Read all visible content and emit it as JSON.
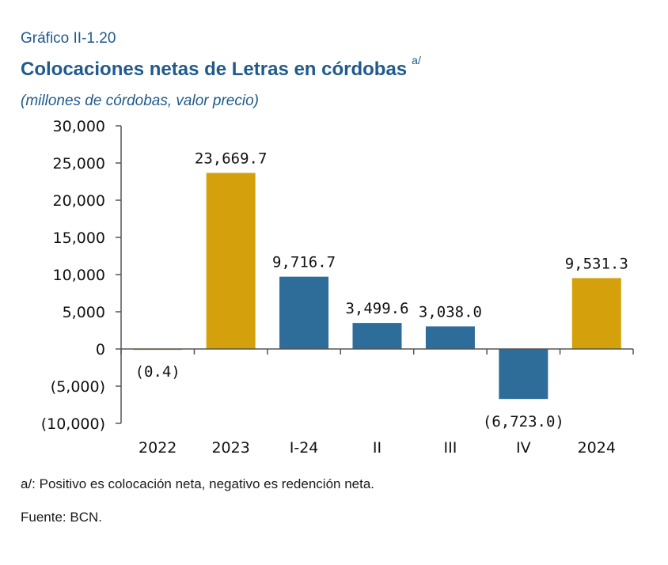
{
  "header": {
    "figure_label": "Gráfico II-1.20",
    "title": "Colocaciones netas de Letras en córdobas",
    "title_note": "a/",
    "subtitle": "(millones de córdobas, valor precio)"
  },
  "footnotes": {
    "note": "a/: Positivo es colocación neta, negativo es redención neta.",
    "source": "Fuente: BCN."
  },
  "colors": {
    "annual": "#d4a10d",
    "quarterly": "#2e6c9a",
    "axis": "#555555",
    "text_blue": "#1f5a8c"
  },
  "chart_data": {
    "type": "bar",
    "categories": [
      "2022",
      "2023",
      "I-24",
      "II",
      "III",
      "IV",
      "2024"
    ],
    "values": [
      -0.4,
      23669.7,
      9716.7,
      3499.6,
      3038.0,
      -6723.0,
      9531.3
    ],
    "data_labels": [
      "(0.4)",
      "23,669.7",
      "9,716.7",
      "3,499.6",
      "3,038.0",
      "(6,723.0)",
      "9,531.3"
    ],
    "bar_groups": [
      "annual",
      "annual",
      "quarterly",
      "quarterly",
      "quarterly",
      "quarterly",
      "annual"
    ],
    "ylim": [
      -10000,
      30000
    ],
    "yticks": [
      30000,
      25000,
      20000,
      15000,
      10000,
      5000,
      0,
      -5000,
      -10000
    ],
    "ytick_labels": [
      "30,000",
      "25,000",
      "20,000",
      "15,000",
      "10,000",
      "5,000",
      "0",
      "(5,000)",
      "(10,000)"
    ],
    "grid": false,
    "xlabel": "",
    "ylabel": ""
  }
}
